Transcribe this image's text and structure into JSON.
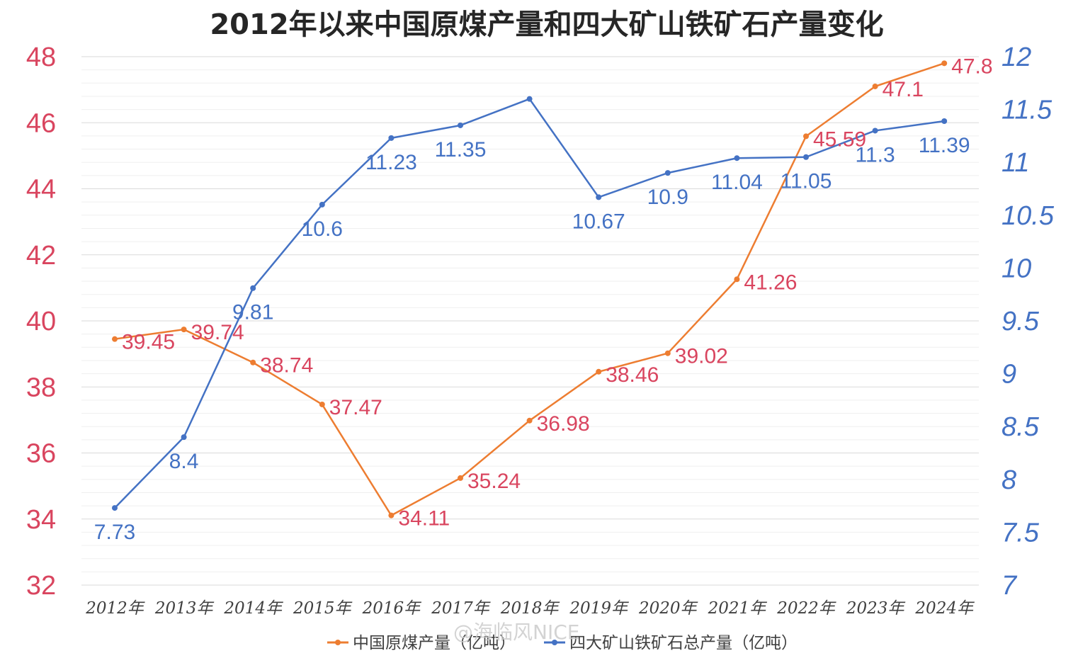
{
  "colors": {
    "coal": "#ED7D31",
    "iron": "#4472C4",
    "coal_axis": "#D9455F",
    "iron_axis": "#4472C4",
    "grid": "#E4E4E4"
  },
  "watermark": "@海临风NICE",
  "chart_data": {
    "type": "line",
    "title": "2012年以来中国原煤产量和四大矿山铁矿石产量变化",
    "categories": [
      "2012年",
      "2013年",
      "2014年",
      "2015年",
      "2016年",
      "2017年",
      "2018年",
      "2019年",
      "2020年",
      "2021年",
      "2022年",
      "2023年",
      "2024年"
    ],
    "y_left": {
      "ylim": [
        32,
        48
      ],
      "ticks": [
        "32",
        "34",
        "36",
        "38",
        "40",
        "42",
        "44",
        "46",
        "48"
      ]
    },
    "y_right": {
      "ylim": [
        7,
        12
      ],
      "ticks": [
        "7",
        "7.5",
        "8",
        "8.5",
        "9",
        "9.5",
        "10",
        "10.5",
        "11",
        "11.5",
        "12"
      ]
    },
    "grid": true,
    "legend_position": "bottom",
    "series": [
      {
        "name": "中国原煤产量（亿吨）",
        "axis": "left",
        "values": [
          39.45,
          39.74,
          38.74,
          37.47,
          34.11,
          35.24,
          36.98,
          38.46,
          39.02,
          41.26,
          45.59,
          47.1,
          47.8
        ],
        "labels": [
          "39.45",
          "39.74",
          "38.74",
          "37.47",
          "34.11",
          "35.24",
          "36.98",
          "38.46",
          "39.02",
          "41.26",
          "45.59",
          "47.1",
          "47.8"
        ]
      },
      {
        "name": "四大矿山铁矿石总产量（亿吨）",
        "axis": "right",
        "values": [
          7.73,
          8.4,
          9.81,
          10.6,
          11.23,
          11.35,
          11.6,
          10.67,
          10.9,
          11.04,
          11.05,
          11.3,
          11.39
        ],
        "labels": [
          "7.73",
          "8.4",
          "9.81",
          "10.6",
          "11.23",
          "11.35",
          "",
          "10.67",
          "10.9",
          "11.04",
          "11.05",
          "11.3",
          "11.39"
        ]
      }
    ]
  }
}
